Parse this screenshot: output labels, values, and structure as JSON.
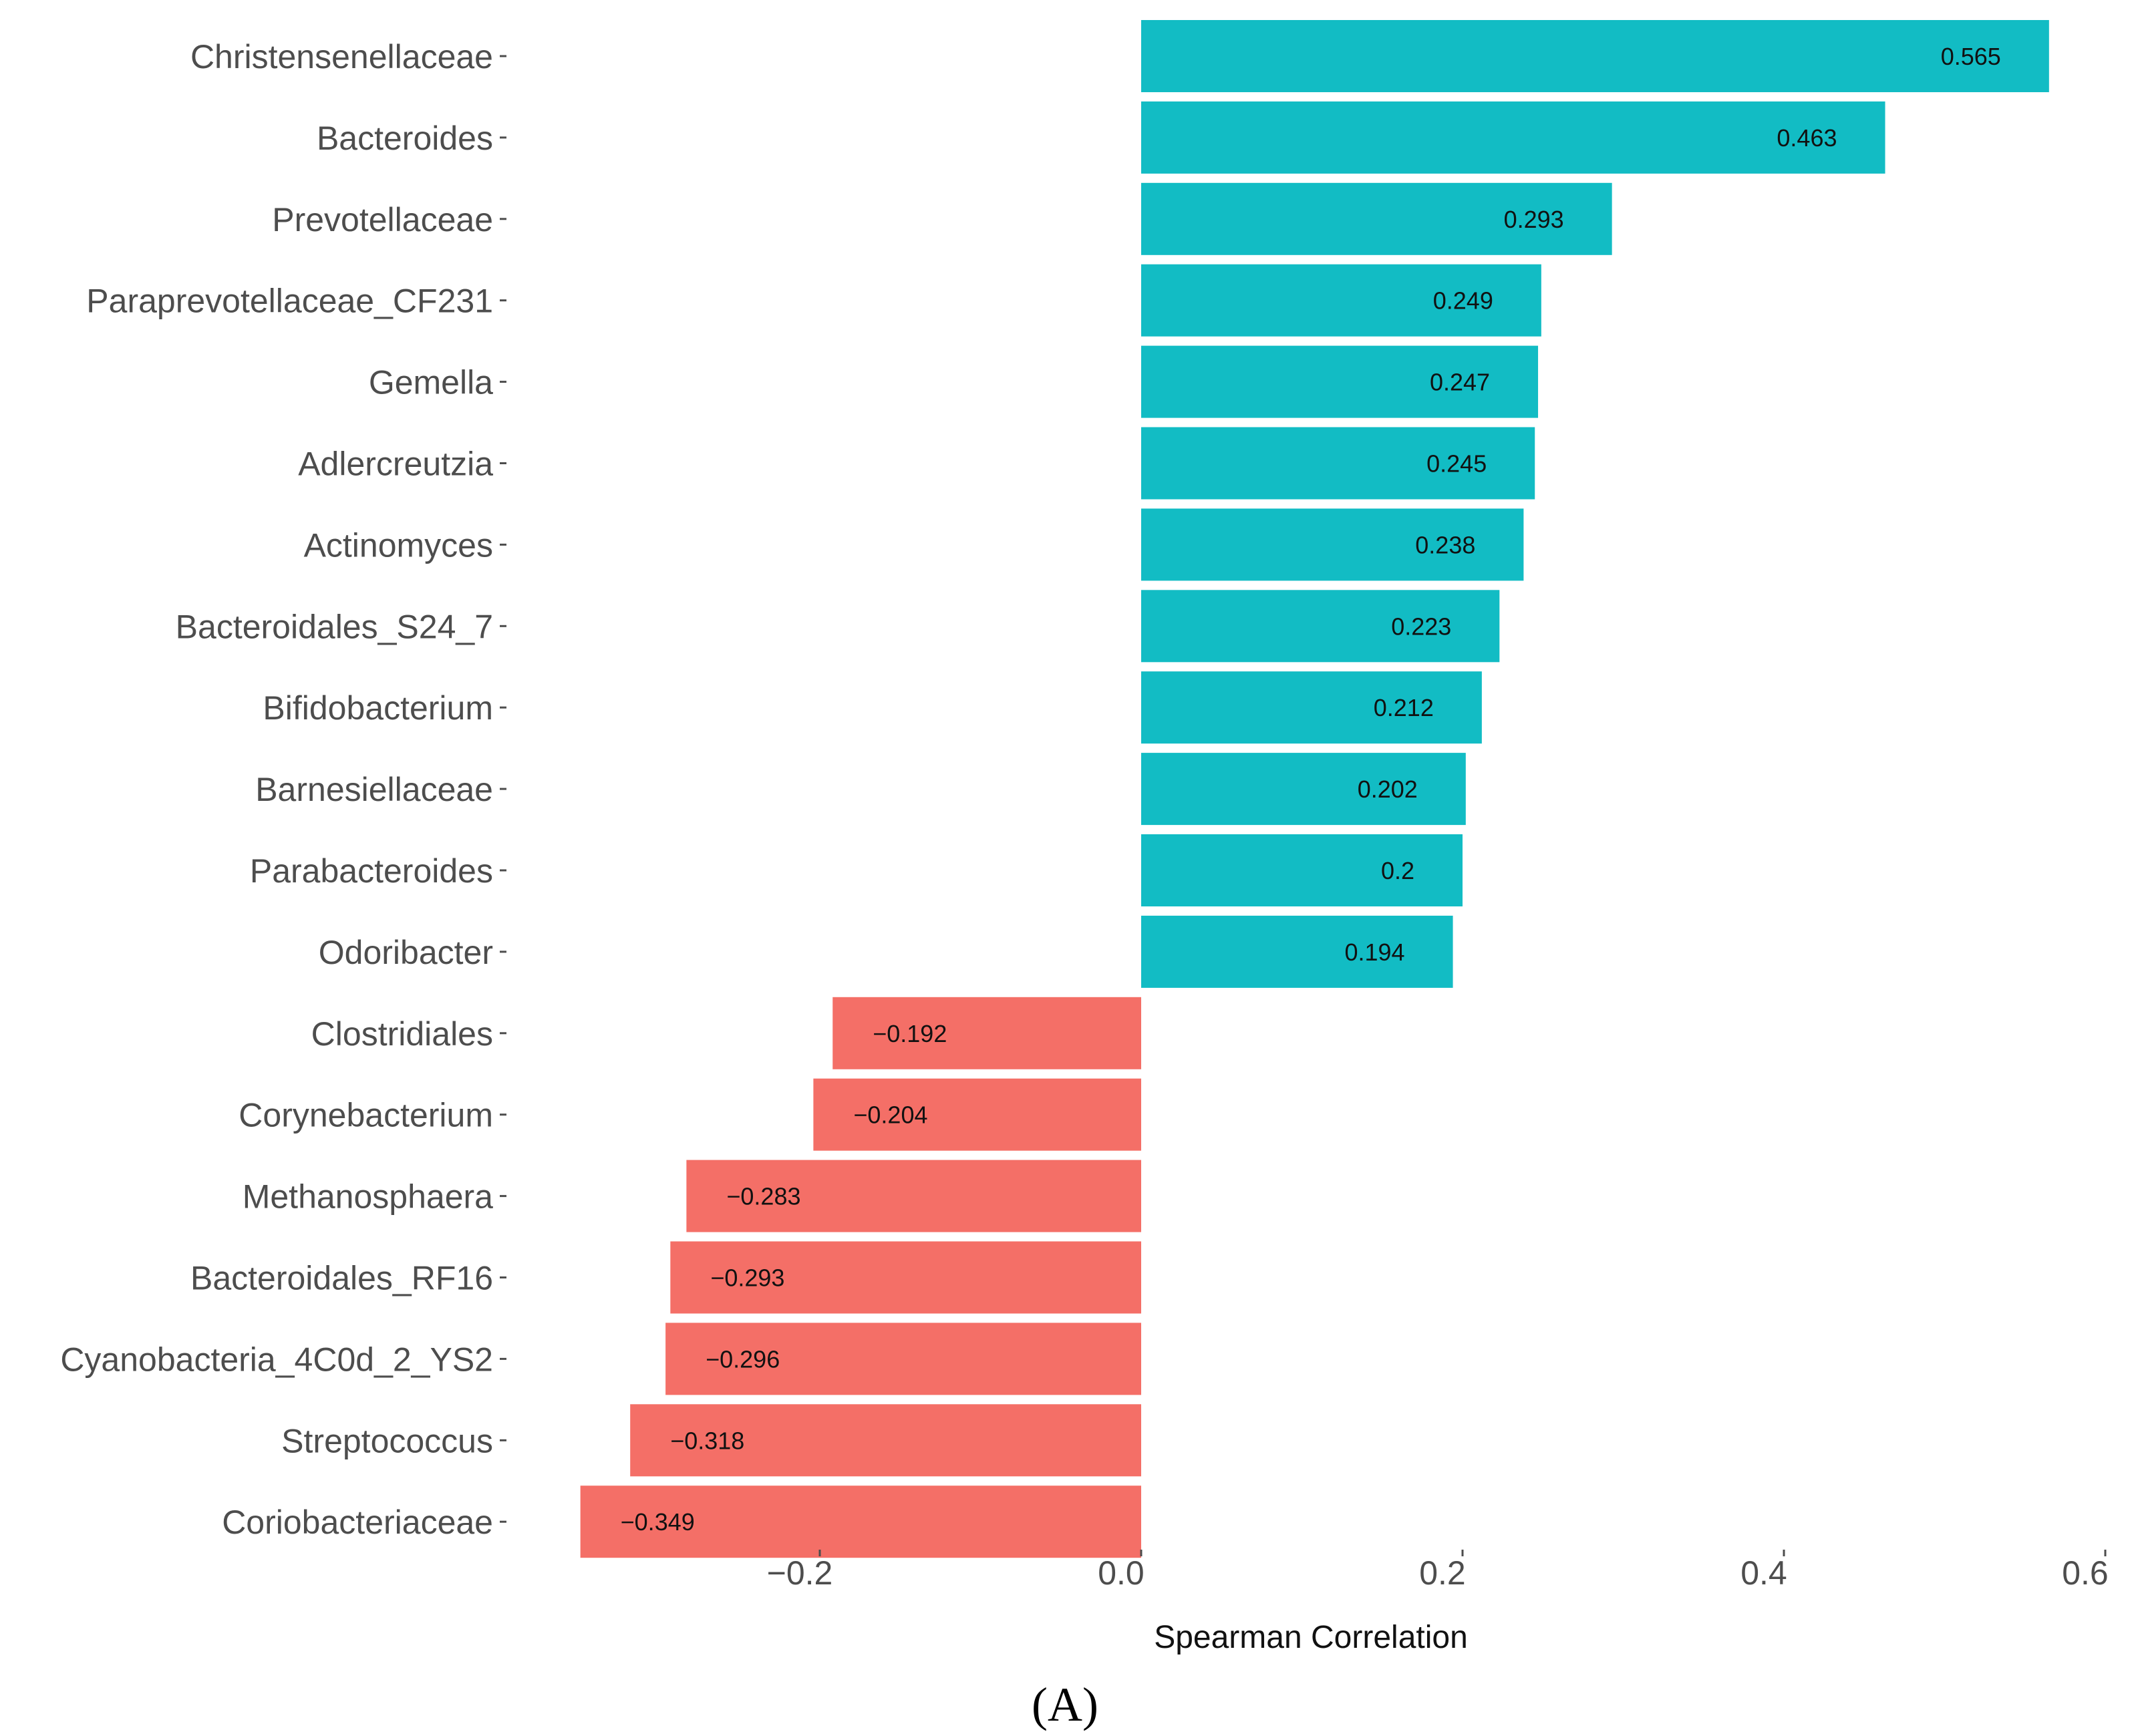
{
  "chart_data": {
    "type": "bar",
    "orientation": "horizontal",
    "categories": [
      "Christensenellaceae",
      "Bacteroides",
      "Prevotellaceae",
      "Paraprevotellaceae_CF231",
      "Gemella",
      "Adlercreutzia",
      "Actinomyces",
      "Bacteroidales_S24_7",
      "Bifidobacterium",
      "Barnesiellaceae",
      "Parabacteroides",
      "Odoribacter",
      "Clostridiales",
      "Corynebacterium",
      "Methanosphaera",
      "Bacteroidales_RF16",
      "Cyanobacteria_4C0d_2_YS2",
      "Streptococcus",
      "Coriobacteriaceae"
    ],
    "values": [
      0.565,
      0.463,
      0.293,
      0.249,
      0.247,
      0.245,
      0.238,
      0.223,
      0.212,
      0.202,
      0.2,
      0.194,
      -0.192,
      -0.204,
      -0.283,
      -0.293,
      -0.296,
      -0.318,
      -0.349
    ],
    "value_labels": [
      "0.565",
      "0.463",
      "0.293",
      "0.249",
      "0.247",
      "0.245",
      "0.238",
      "0.223",
      "0.212",
      "0.202",
      "0.2",
      "0.194",
      "−0.192",
      "−0.204",
      "−0.283",
      "−0.293",
      "−0.296",
      "−0.318",
      "−0.349"
    ],
    "xlabel": "Spearman Correlation",
    "xlim": [
      -0.37,
      0.6
    ],
    "x_ticks": [
      -0.2,
      0.0,
      0.2,
      0.4,
      0.6
    ],
    "x_tick_labels": [
      "−0.2",
      "0.0",
      "0.2",
      "0.4",
      "0.6"
    ],
    "colors": {
      "positive": "#12BCC4",
      "negative": "#F46F67"
    },
    "grid": false,
    "legend": "none"
  },
  "panel_label": "(A)"
}
